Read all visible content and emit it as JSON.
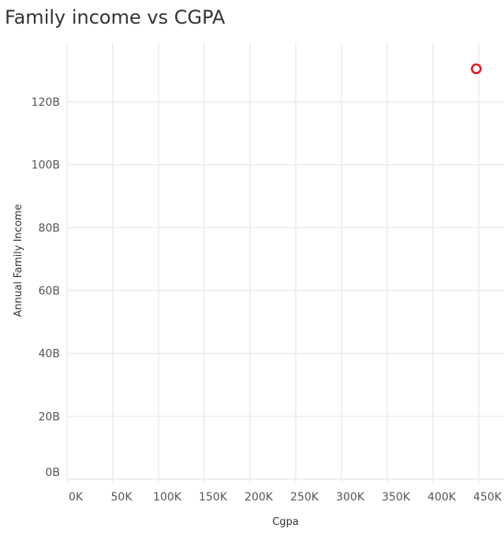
{
  "chart_data": {
    "type": "scatter",
    "title": "Family income vs CGPA",
    "xlabel": "Cgpa",
    "ylabel": "Annual Family Income",
    "xlim": [
      0,
      450000
    ],
    "ylim": [
      0,
      140000000000
    ],
    "x_ticks": [
      {
        "value": 0,
        "label": "0K"
      },
      {
        "value": 50000,
        "label": "50K"
      },
      {
        "value": 100000,
        "label": "100K"
      },
      {
        "value": 150000,
        "label": "150K"
      },
      {
        "value": 200000,
        "label": "200K"
      },
      {
        "value": 250000,
        "label": "250K"
      },
      {
        "value": 300000,
        "label": "300K"
      },
      {
        "value": 350000,
        "label": "350K"
      },
      {
        "value": 400000,
        "label": "400K"
      },
      {
        "value": 450000,
        "label": "450K"
      }
    ],
    "y_ticks": [
      {
        "value": 0,
        "label": "0B"
      },
      {
        "value": 20000000000,
        "label": "20B"
      },
      {
        "value": 40000000000,
        "label": "40B"
      },
      {
        "value": 60000000000,
        "label": "60B"
      },
      {
        "value": 80000000000,
        "label": "80B"
      },
      {
        "value": 100000000000,
        "label": "100B"
      },
      {
        "value": 120000000000,
        "label": "120B"
      }
    ],
    "grid": true,
    "points": [
      {
        "x": 438000,
        "y": 130500000000
      }
    ],
    "marker_color": "#e0141e"
  }
}
